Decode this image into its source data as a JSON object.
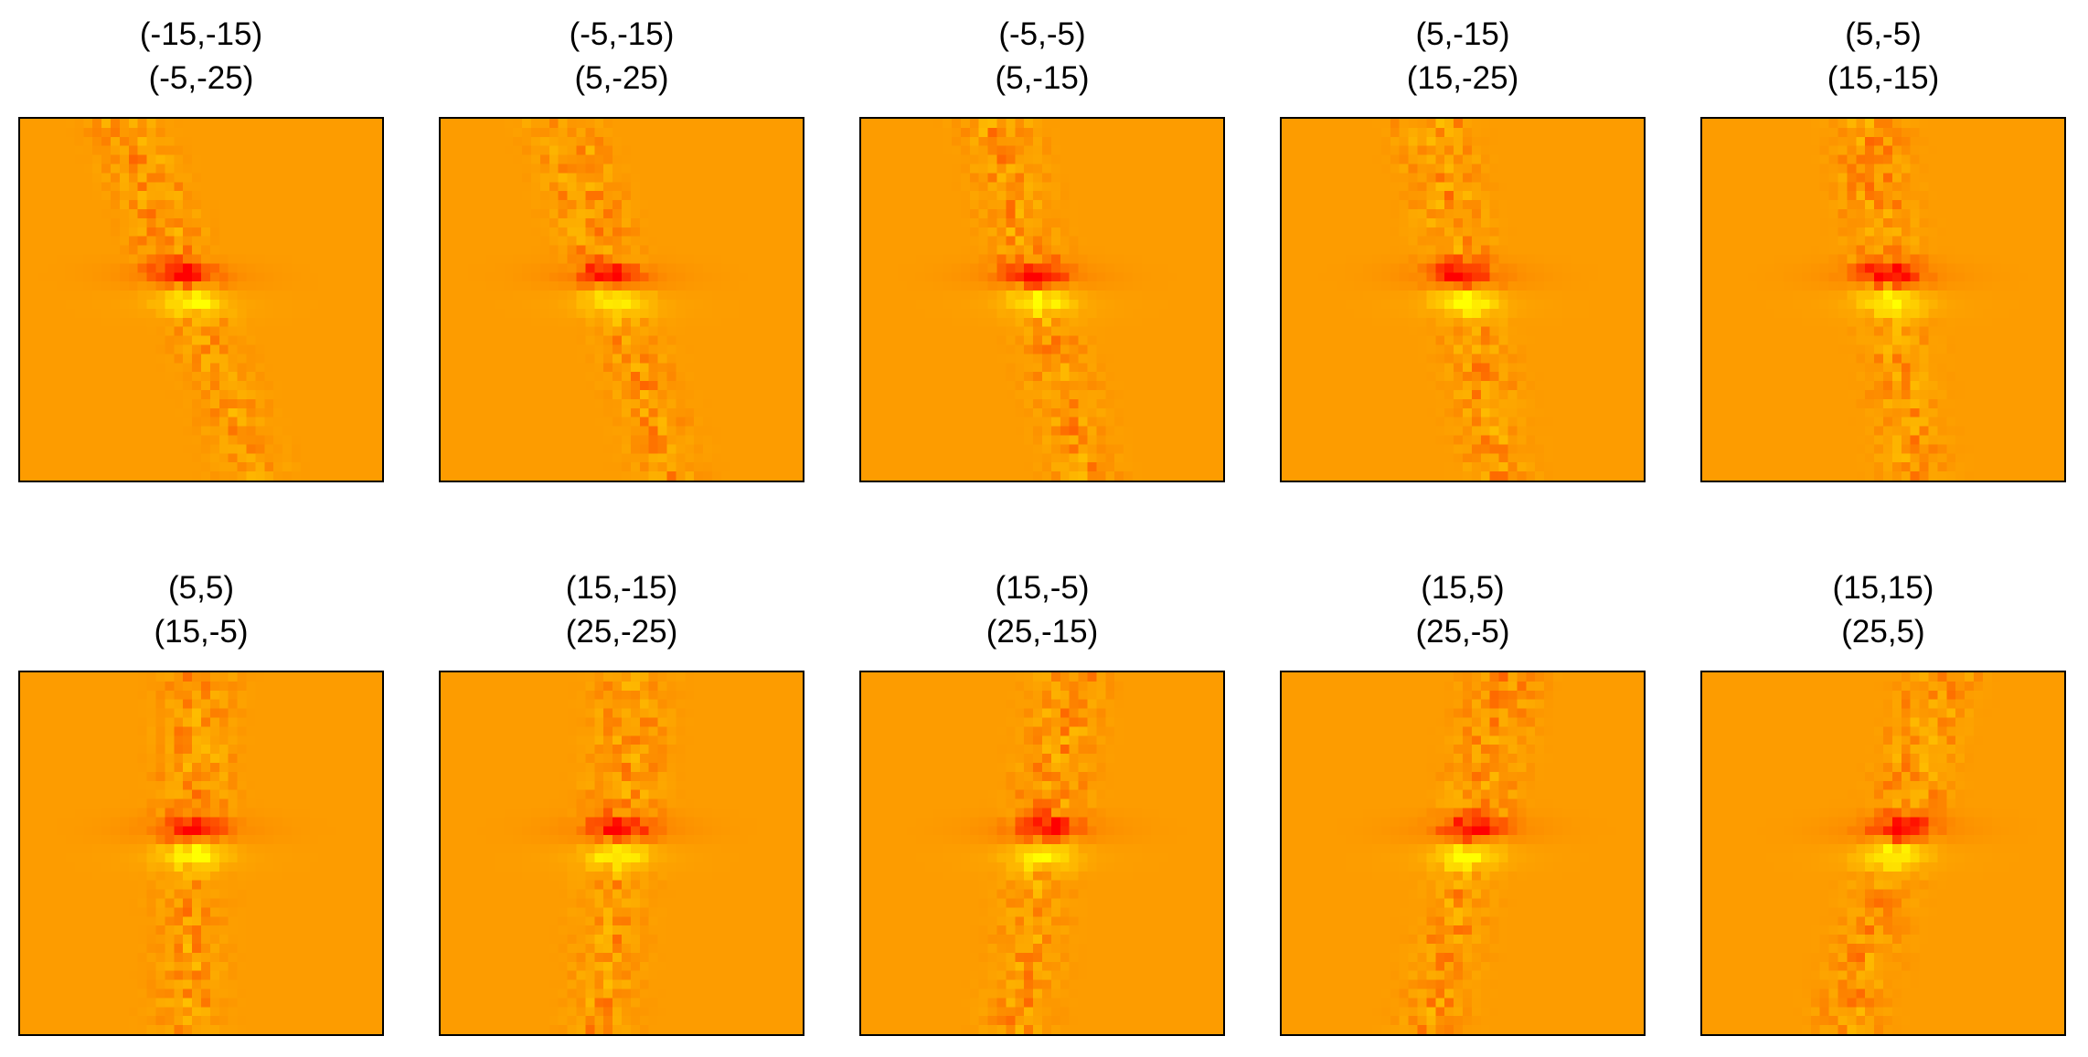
{
  "chart_data": {
    "type": "heatmap",
    "colormap": [
      "#ff0000",
      "#fd9c00",
      "#ffff00"
    ],
    "grid": false,
    "axes": "hidden",
    "panels": [
      {
        "title_line1": "(-15,-15)",
        "title_line2": "(-5,-25)"
      },
      {
        "title_line1": "(-5,-15)",
        "title_line2": "(5,-25)"
      },
      {
        "title_line1": "(-5,-5)",
        "title_line2": "(5,-15)"
      },
      {
        "title_line1": "(5,-15)",
        "title_line2": "(15,-25)"
      },
      {
        "title_line1": "(5,-5)",
        "title_line2": "(15,-15)"
      },
      {
        "title_line1": "(5,5)",
        "title_line2": "(15,-5)"
      },
      {
        "title_line1": "(15,-15)",
        "title_line2": "(25,-25)"
      },
      {
        "title_line1": "(15,-5)",
        "title_line2": "(25,-15)"
      },
      {
        "title_line1": "(15,5)",
        "title_line2": "(25,-5)"
      },
      {
        "title_line1": "(15,15)",
        "title_line2": "(25,5)"
      }
    ]
  }
}
